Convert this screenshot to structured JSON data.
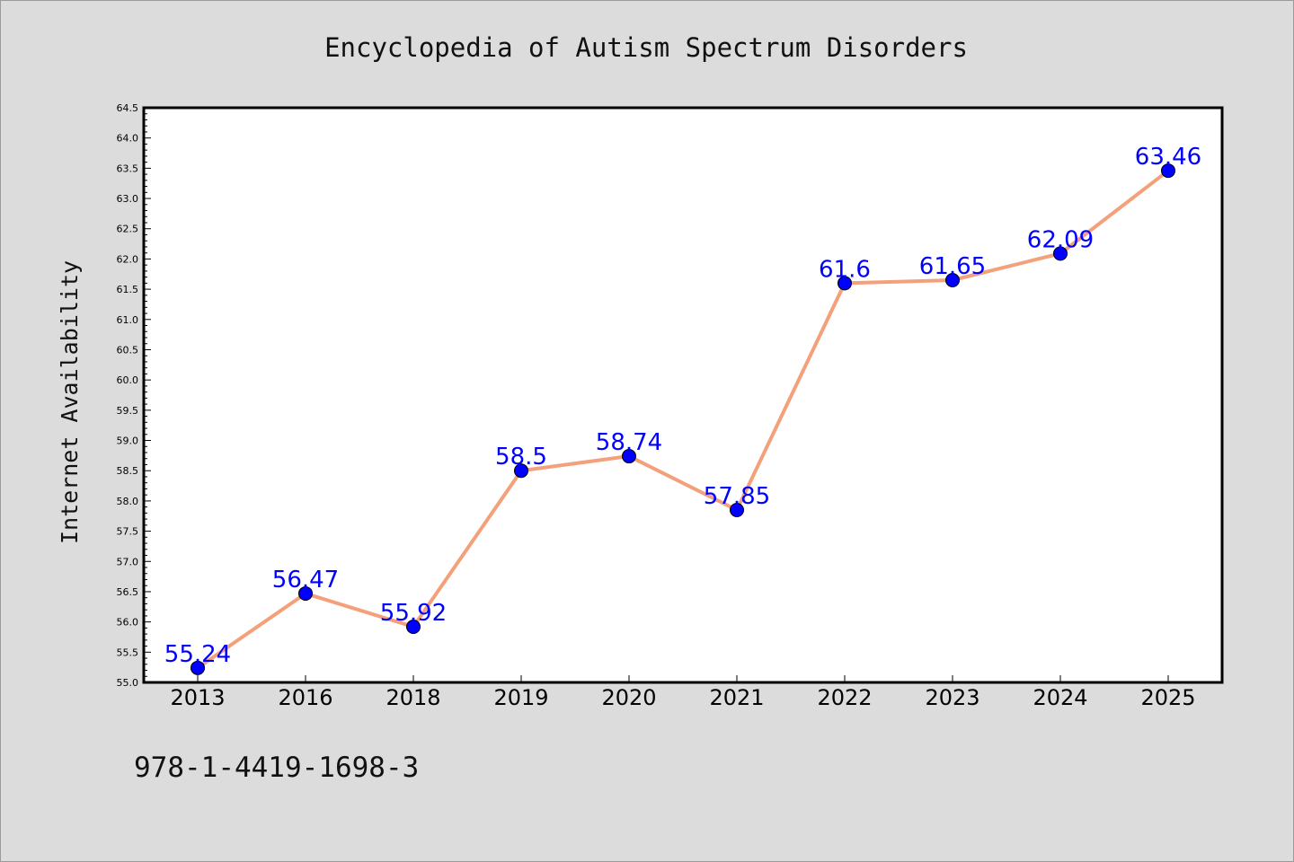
{
  "chart_data": {
    "type": "line",
    "title": "Encyclopedia of Autism Spectrum Disorders",
    "xlabel": "",
    "ylabel": "Internet Availability",
    "categories": [
      "2013",
      "2016",
      "2018",
      "2019",
      "2020",
      "2021",
      "2022",
      "2023",
      "2024",
      "2025"
    ],
    "values": [
      55.24,
      56.47,
      55.92,
      58.5,
      58.74,
      57.85,
      61.6,
      61.65,
      62.09,
      63.46
    ],
    "data_labels": [
      "55.24",
      "56.47",
      "55.92",
      "58.5",
      "58.74",
      "57.85",
      "61.6",
      "61.65",
      "62.09",
      "63.46"
    ],
    "ylim": [
      55.0,
      64.5
    ],
    "yticks": [
      "55.0",
      "55.5",
      "56.0",
      "56.5",
      "57.0",
      "57.5",
      "58.0",
      "58.5",
      "59.0",
      "59.5",
      "60.0",
      "60.5",
      "61.0",
      "61.5",
      "62.0",
      "62.5",
      "63.0",
      "63.5",
      "64.0",
      "64.5"
    ],
    "grid": false,
    "line_color": "#f4a07a",
    "marker_color": "#0000ff",
    "label_color": "#0000ff",
    "plot_background": "#ffffff",
    "figure_background": "#dcdcdc"
  },
  "footer": {
    "isbn": "978-1-4419-1698-3"
  }
}
